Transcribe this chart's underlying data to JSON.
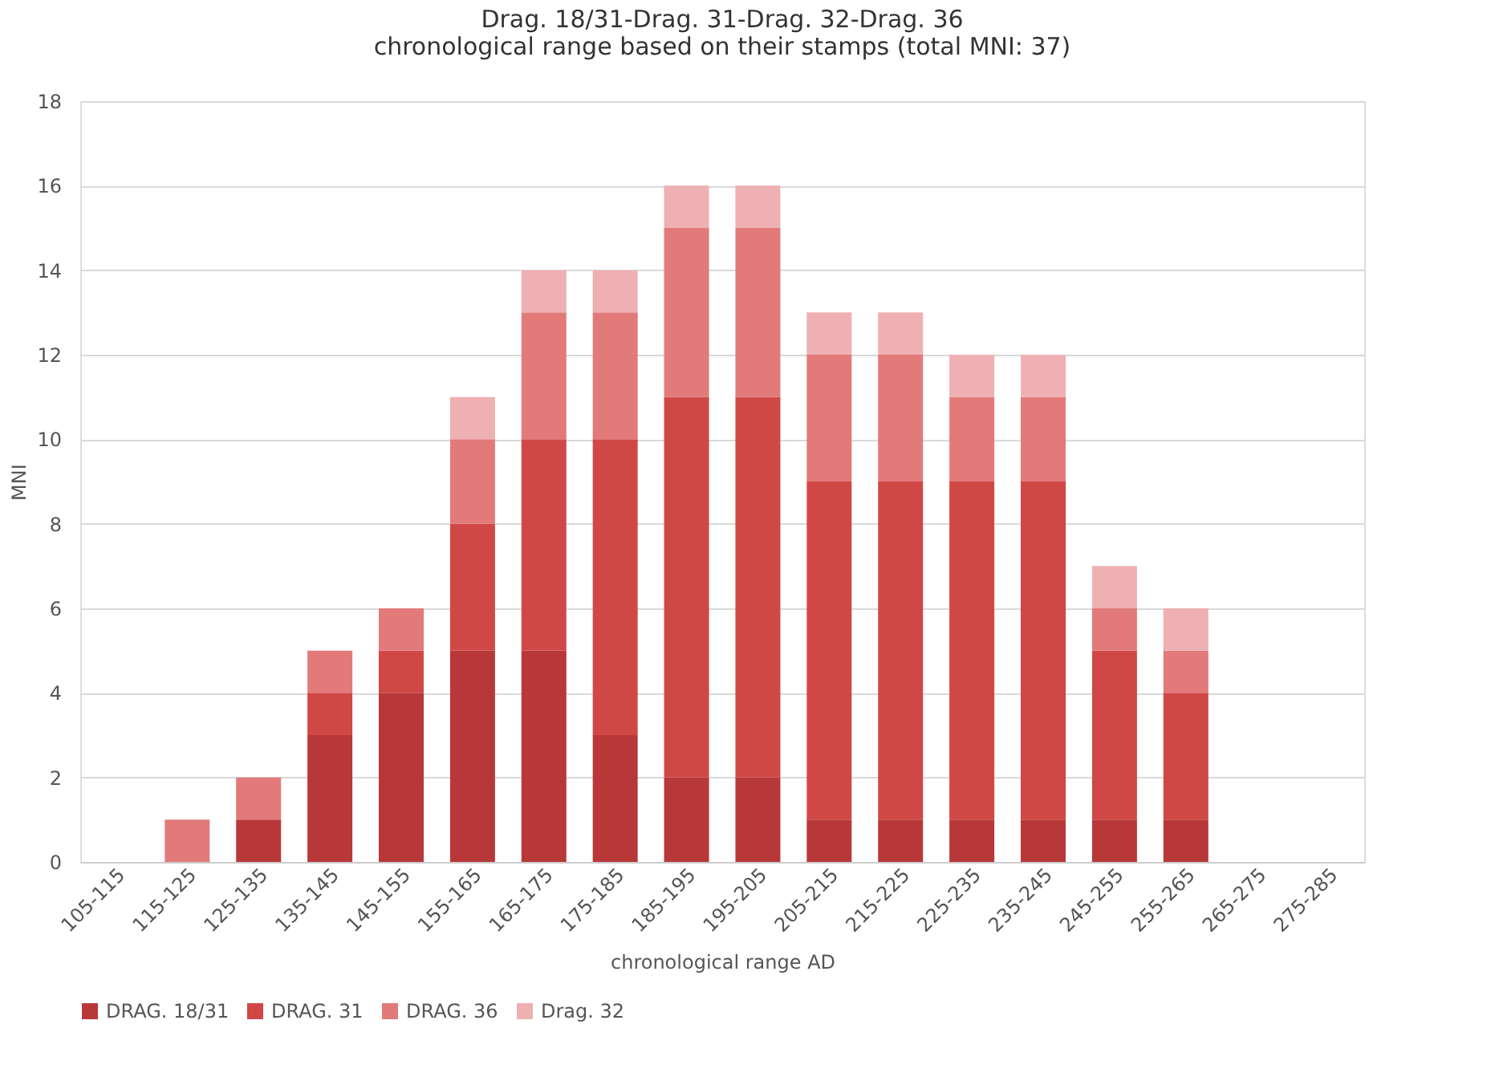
{
  "chart_data": {
    "type": "bar",
    "stacked": true,
    "title": [
      "Drag. 18/31-Drag. 31-Drag. 32-Drag. 36",
      "chronological range based on their stamps (total MNI: 37)"
    ],
    "xlabel": "chronological range AD",
    "ylabel": "MNI",
    "categories": [
      "105-115",
      "115-125",
      "125-135",
      "135-145",
      "145-155",
      "155-165",
      "165-175",
      "175-185",
      "185-195",
      "195-205",
      "205-215",
      "215-225",
      "225-235",
      "235-245",
      "245-255",
      "255-265",
      "265-275",
      "275-285"
    ],
    "series": [
      {
        "name": "DRAG. 18/31",
        "color": "#b8383a",
        "values": [
          0,
          0,
          1,
          3,
          4,
          5,
          5,
          3,
          2,
          2,
          1,
          1,
          1,
          1,
          1,
          1,
          0,
          0
        ]
      },
      {
        "name": "DRAG. 31",
        "color": "#d04846",
        "values": [
          0,
          0,
          0,
          1,
          1,
          3,
          5,
          7,
          9,
          9,
          8,
          8,
          8,
          8,
          4,
          3,
          0,
          0
        ]
      },
      {
        "name": "DRAG. 36",
        "color": "#e27a7a",
        "values": [
          0,
          1,
          1,
          1,
          1,
          2,
          3,
          3,
          4,
          4,
          3,
          3,
          2,
          2,
          1,
          1,
          0,
          0
        ]
      },
      {
        "name": "Drag. 32",
        "color": "#eeb0b2",
        "values": [
          0,
          0,
          0,
          0,
          0,
          1,
          1,
          1,
          1,
          1,
          1,
          1,
          1,
          1,
          1,
          1,
          0,
          0
        ]
      }
    ],
    "ylim": [
      0,
      18
    ],
    "yticks": [
      0,
      2,
      4,
      6,
      8,
      10,
      12,
      14,
      16,
      18
    ],
    "grid": "y",
    "legend": "bottom"
  }
}
